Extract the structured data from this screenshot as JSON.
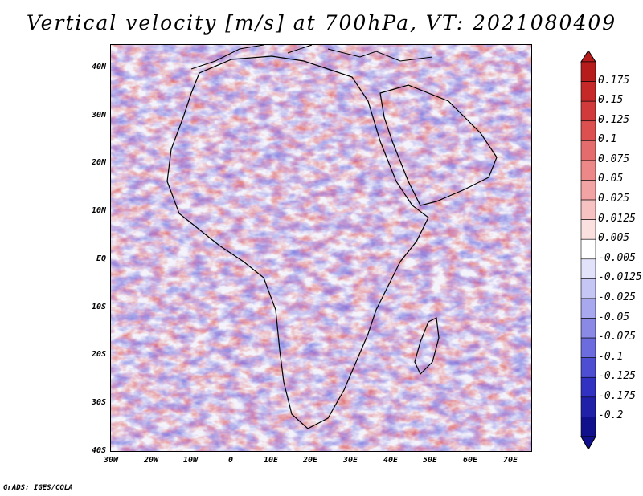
{
  "title": "Vertical velocity [m/s] at 700hPa, VT: 2021080409",
  "footer": "GrADS: IGES/COLA",
  "lat_labels": [
    "40N",
    "30N",
    "20N",
    "10N",
    "EQ",
    "10S",
    "20S",
    "30S",
    "40S"
  ],
  "lon_labels": [
    "30W",
    "20W",
    "10W",
    "0",
    "10E",
    "20E",
    "30E",
    "40E",
    "50E",
    "60E",
    "70E"
  ],
  "colorbar": {
    "labels": [
      "0.175",
      "0.15",
      "0.125",
      "0.1",
      "0.075",
      "0.05",
      "0.025",
      "0.0125",
      "0.005",
      "-0.005",
      "-0.0125",
      "-0.025",
      "-0.05",
      "-0.075",
      "-0.1",
      "-0.125",
      "-0.175",
      "-0.2"
    ],
    "colors": [
      "#b71c1c",
      "#c62828",
      "#d03a3a",
      "#dc5050",
      "#e46c6c",
      "#ec8888",
      "#f2a4a4",
      "#f7c2c2",
      "#fbe0e0",
      "#ffffff",
      "#e2e2fb",
      "#c6c6f5",
      "#a8a8ee",
      "#8a8ae6",
      "#6c6cde",
      "#4e4ed2",
      "#3232c2",
      "#2020a8",
      "#10108c"
    ]
  },
  "colors": {
    "positive": "#e06060",
    "negative": "#6060d8",
    "coast": "#000000"
  }
}
